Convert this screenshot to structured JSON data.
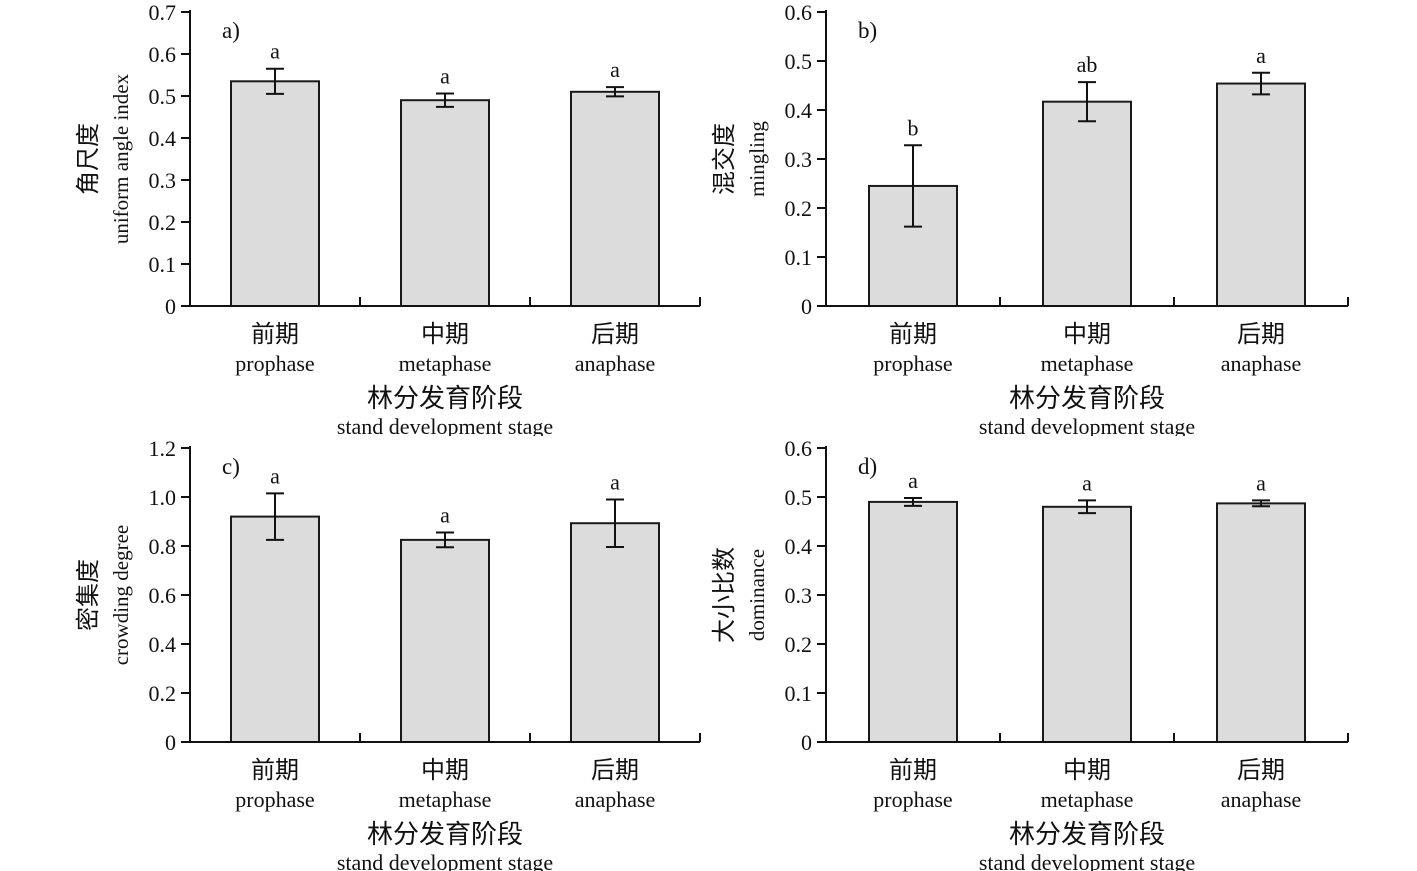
{
  "figure": {
    "description": "Four-panel bar chart of stand spatial structure indices by stand development stage",
    "background": "#ffffff"
  },
  "style": {
    "bar_fill": "#dcdcdc",
    "bar_stroke": "#1a1a1a",
    "axis_color": "#111111",
    "error_bar_color": "#111111"
  },
  "shared": {
    "xlabel_cn": "林分发育阶段",
    "xlabel_en": "stand development stage",
    "categories_cn": [
      "前期",
      "中期",
      "后期"
    ],
    "categories_en": [
      "prophase",
      "metaphase",
      "anaphase"
    ]
  },
  "chart_data": [
    {
      "type": "bar",
      "panel_label": "a)",
      "ylabel_cn": "角尺度",
      "ylabel_en": "uniform angle index",
      "xlabel_cn": "林分发育阶段",
      "xlabel_en": "stand development stage",
      "categories_cn": [
        "前期",
        "中期",
        "后期"
      ],
      "categories_en": [
        "prophase",
        "metaphase",
        "anaphase"
      ],
      "values": [
        0.535,
        0.49,
        0.51
      ],
      "errors": [
        0.03,
        0.016,
        0.011
      ],
      "sig_letters": [
        "a",
        "a",
        "a"
      ],
      "ylim": [
        0,
        0.7
      ],
      "ytick_step": 0.1,
      "grid": false,
      "legend": "none"
    },
    {
      "type": "bar",
      "panel_label": "b)",
      "ylabel_cn": "混交度",
      "ylabel_en": "mingling",
      "xlabel_cn": "林分发育阶段",
      "xlabel_en": "stand development stage",
      "categories_cn": [
        "前期",
        "中期",
        "后期"
      ],
      "categories_en": [
        "prophase",
        "metaphase",
        "anaphase"
      ],
      "values": [
        0.245,
        0.417,
        0.454
      ],
      "errors": [
        0.083,
        0.04,
        0.022
      ],
      "sig_letters": [
        "b",
        "ab",
        "a"
      ],
      "ylim": [
        0,
        0.6
      ],
      "ytick_step": 0.1,
      "grid": false,
      "legend": "none"
    },
    {
      "type": "bar",
      "panel_label": "c)",
      "ylabel_cn": "密集度",
      "ylabel_en": "crowding degree",
      "xlabel_cn": "林分发育阶段",
      "xlabel_en": "stand development stage",
      "categories_cn": [
        "前期",
        "中期",
        "后期"
      ],
      "categories_en": [
        "prophase",
        "metaphase",
        "anaphase"
      ],
      "values": [
        0.92,
        0.825,
        0.893
      ],
      "errors": [
        0.095,
        0.03,
        0.097
      ],
      "sig_letters": [
        "a",
        "a",
        "a"
      ],
      "ylim": [
        0,
        1.2
      ],
      "ytick_step": 0.2,
      "grid": false,
      "legend": "none"
    },
    {
      "type": "bar",
      "panel_label": "d)",
      "ylabel_cn": "大小比数",
      "ylabel_en": "dominance",
      "xlabel_cn": "林分发育阶段",
      "xlabel_en": "stand development stage",
      "categories_cn": [
        "前期",
        "中期",
        "后期"
      ],
      "categories_en": [
        "prophase",
        "metaphase",
        "anaphase"
      ],
      "values": [
        0.49,
        0.48,
        0.487
      ],
      "errors": [
        0.008,
        0.013,
        0.006
      ],
      "sig_letters": [
        "a",
        "a",
        "a"
      ],
      "ylim": [
        0,
        0.6
      ],
      "ytick_step": 0.1,
      "grid": false,
      "legend": "none"
    }
  ]
}
